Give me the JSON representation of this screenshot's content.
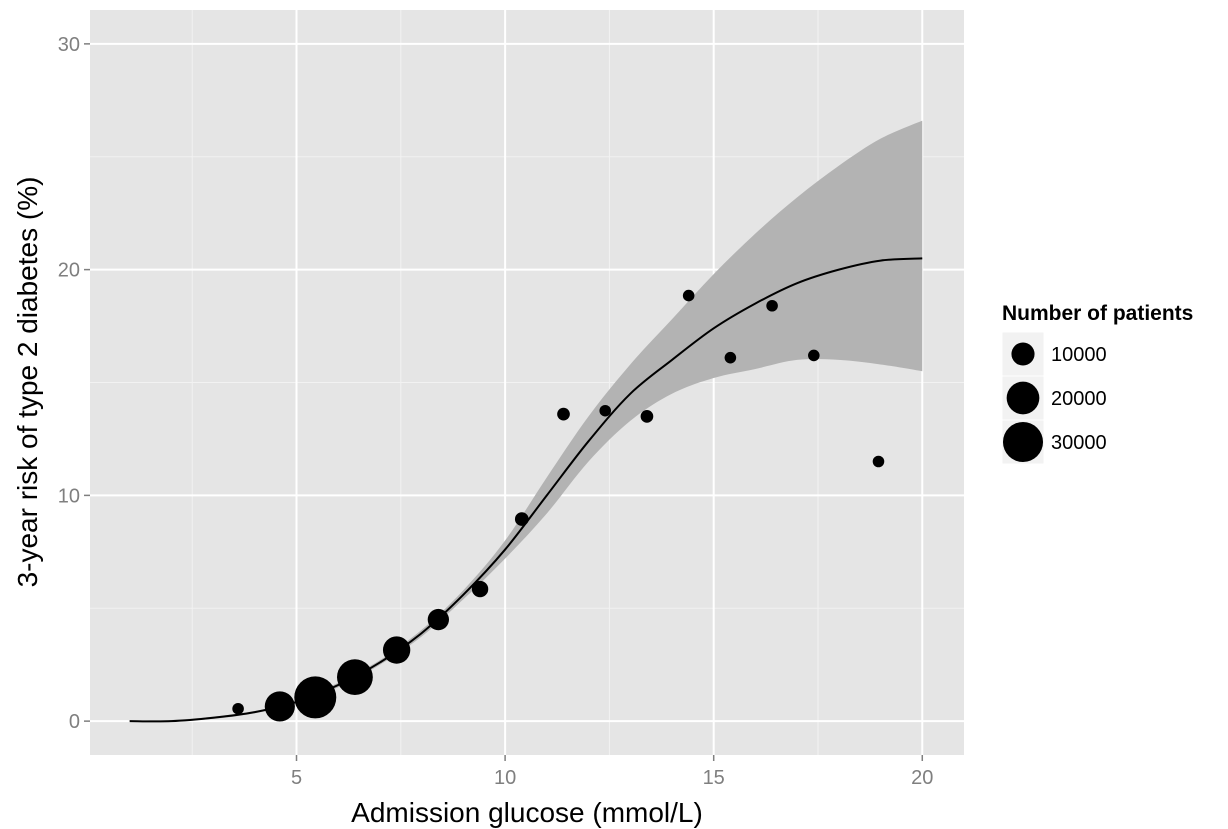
{
  "chart_data": {
    "type": "scatter",
    "title": "",
    "xlabel": "Admission glucose (mmol/L)",
    "ylabel": "3-year risk of type 2 diabetes (%)",
    "xlim": [
      0.05,
      21
    ],
    "ylim": [
      -1.5,
      31.5
    ],
    "x_ticks": [
      5,
      10,
      15,
      20
    ],
    "y_ticks": [
      0,
      10,
      20,
      30
    ],
    "x_tick_labels": [
      "5",
      "10",
      "15",
      "20"
    ],
    "y_tick_labels": [
      "0",
      "10",
      "20",
      "30"
    ],
    "grid": true,
    "panel_background": "#e5e5e5",
    "ribbon_color": "#b3b3b3",
    "point_color": "#000000",
    "legend": {
      "title": "Number of patients",
      "placement": "right",
      "entries": [
        {
          "label": "10000",
          "size": 10000
        },
        {
          "label": "20000",
          "size": 20000
        },
        {
          "label": "30000",
          "size": 30000
        }
      ]
    },
    "points": [
      {
        "x": 3.6,
        "y": 0.55,
        "n": 2500
      },
      {
        "x": 4.6,
        "y": 0.65,
        "n": 17000
      },
      {
        "x": 5.45,
        "y": 1.05,
        "n": 33000
      },
      {
        "x": 6.4,
        "y": 1.95,
        "n": 24000
      },
      {
        "x": 7.4,
        "y": 3.15,
        "n": 14000
      },
      {
        "x": 8.4,
        "y": 4.5,
        "n": 8500
      },
      {
        "x": 9.4,
        "y": 5.85,
        "n": 5000
      },
      {
        "x": 10.4,
        "y": 8.95,
        "n": 3500
      },
      {
        "x": 11.4,
        "y": 13.6,
        "n": 3000
      },
      {
        "x": 12.4,
        "y": 13.75,
        "n": 2500
      },
      {
        "x": 13.4,
        "y": 13.5,
        "n": 3000
      },
      {
        "x": 14.4,
        "y": 18.85,
        "n": 2500
      },
      {
        "x": 15.4,
        "y": 16.1,
        "n": 2500
      },
      {
        "x": 16.4,
        "y": 18.4,
        "n": 2500
      },
      {
        "x": 17.4,
        "y": 16.2,
        "n": 2500
      },
      {
        "x": 18.95,
        "y": 11.5,
        "n": 2500
      }
    ],
    "fit_line": {
      "x": [
        1,
        2,
        3,
        4,
        5,
        6,
        7,
        8,
        9,
        10,
        11,
        12,
        13,
        14,
        15,
        16,
        17,
        18,
        19,
        20
      ],
      "y": [
        0,
        0,
        0.15,
        0.4,
        0.85,
        1.6,
        2.6,
        3.9,
        5.6,
        7.6,
        10,
        12.4,
        14.5,
        16,
        17.4,
        18.5,
        19.4,
        20,
        20.4,
        20.5
      ]
    },
    "ribbon": {
      "x": [
        1,
        2,
        3,
        4,
        5,
        6,
        7,
        8,
        9,
        10,
        11,
        12,
        13,
        14,
        15,
        16,
        17,
        18,
        19,
        20
      ],
      "upper": [
        0.03,
        0.05,
        0.2,
        0.45,
        0.9,
        1.7,
        2.7,
        4.05,
        5.8,
        8.0,
        10.8,
        13.5,
        15.8,
        17.8,
        19.8,
        21.6,
        23.2,
        24.6,
        25.8,
        26.6
      ],
      "lower": [
        0,
        0,
        0.1,
        0.35,
        0.8,
        1.5,
        2.5,
        3.75,
        5.4,
        7.2,
        9.2,
        11.5,
        13.3,
        14.5,
        15.2,
        15.6,
        16.0,
        16.0,
        15.8,
        15.5
      ]
    }
  }
}
